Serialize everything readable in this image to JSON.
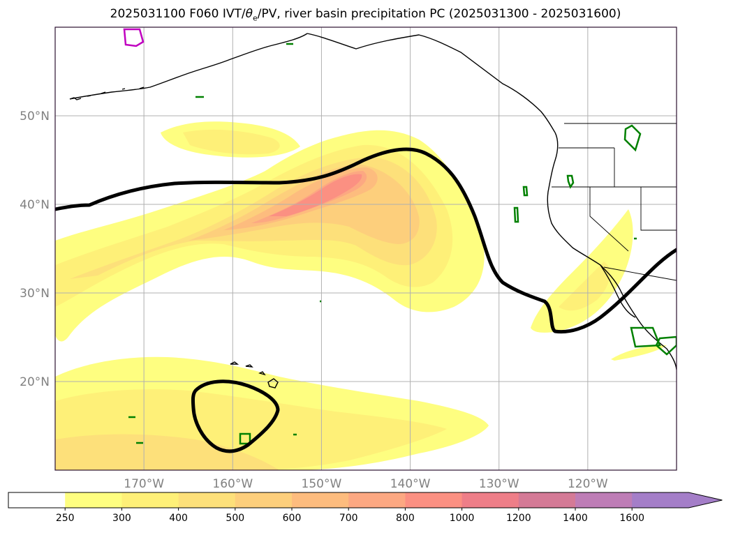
{
  "title_parts": {
    "prefix": "2025031100 F060 IVT/",
    "theta": "θ",
    "sub": "e",
    "suffix": "/PV, river basin precipitation PC (2025031300 - 2025031600)"
  },
  "map": {
    "lat_ticks": [
      {
        "value": 20,
        "label": "20°N"
      },
      {
        "value": 30,
        "label": "30°N"
      },
      {
        "value": 40,
        "label": "40°N"
      },
      {
        "value": 50,
        "label": "50°N"
      }
    ],
    "lon_ticks": [
      {
        "value": -170,
        "label": "170°W"
      },
      {
        "value": -160,
        "label": "160°W"
      },
      {
        "value": -150,
        "label": "150°W"
      },
      {
        "value": -140,
        "label": "140°W"
      },
      {
        "value": -130,
        "label": "130°W"
      },
      {
        "value": -120,
        "label": "120°W"
      }
    ],
    "extent": {
      "lon_min": -180,
      "lon_max": -110,
      "lat_min": 10,
      "lat_max": 60
    },
    "grid": true
  },
  "colorbar": {
    "levels": [
      "250",
      "300",
      "400",
      "500",
      "600",
      "700",
      "800",
      "1000",
      "1200",
      "1400",
      "1600"
    ],
    "colors": [
      "#ffffff",
      "#fefe80",
      "#fef078",
      "#fde07a",
      "#fdcf7c",
      "#fdbc7e",
      "#fca882",
      "#fb9082",
      "#ee7e88",
      "#d47a96",
      "#be7db6",
      "#a47ec8"
    ],
    "extend": "max"
  },
  "colors": {
    "pv_contour": "#000000",
    "precip_green": "#008000",
    "precip_magenta": "#c000c0",
    "coastline": "#000000",
    "gridline": "#b0b0b0"
  }
}
